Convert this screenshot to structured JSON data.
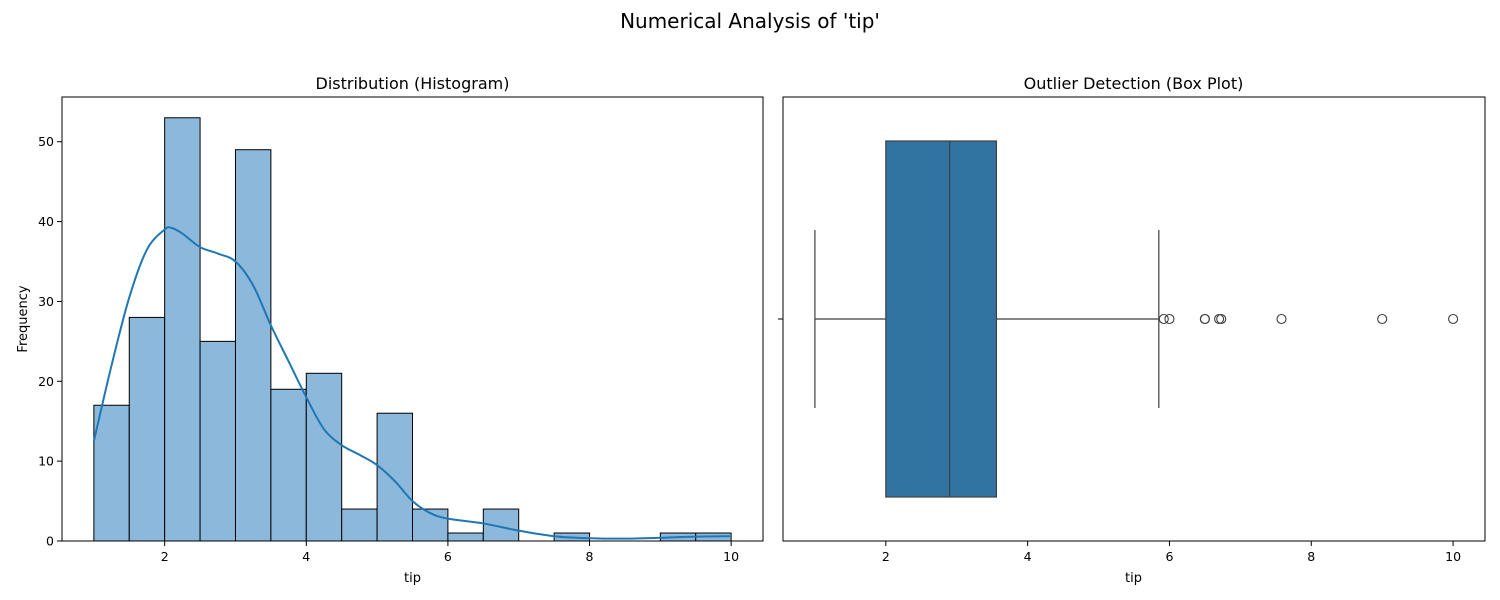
{
  "figure": {
    "suptitle": "Numerical Analysis of 'tip'"
  },
  "chart_data": [
    {
      "type": "bar",
      "subtype": "histogram-with-kde",
      "title": "Distribution (Histogram)",
      "xlabel": "tip",
      "ylabel": "Frequency",
      "xlim": [
        0.55,
        10.45
      ],
      "ylim": [
        0,
        55.6
      ],
      "xticks": [
        2,
        4,
        6,
        8,
        10
      ],
      "yticks": [
        0,
        10,
        20,
        30,
        40,
        50
      ],
      "bins": [
        {
          "x0": 1.0,
          "x1": 1.5,
          "count": 17
        },
        {
          "x0": 1.5,
          "x1": 2.0,
          "count": 28
        },
        {
          "x0": 2.0,
          "x1": 2.5,
          "count": 53
        },
        {
          "x0": 2.5,
          "x1": 3.0,
          "count": 25
        },
        {
          "x0": 3.0,
          "x1": 3.5,
          "count": 49
        },
        {
          "x0": 3.5,
          "x1": 4.0,
          "count": 19
        },
        {
          "x0": 4.0,
          "x1": 4.5,
          "count": 21
        },
        {
          "x0": 4.5,
          "x1": 5.0,
          "count": 4
        },
        {
          "x0": 5.0,
          "x1": 5.5,
          "count": 16
        },
        {
          "x0": 5.5,
          "x1": 6.0,
          "count": 4
        },
        {
          "x0": 6.0,
          "x1": 6.5,
          "count": 1
        },
        {
          "x0": 6.5,
          "x1": 7.0,
          "count": 4
        },
        {
          "x0": 7.0,
          "x1": 7.5,
          "count": 0
        },
        {
          "x0": 7.5,
          "x1": 8.0,
          "count": 1
        },
        {
          "x0": 8.0,
          "x1": 8.5,
          "count": 0
        },
        {
          "x0": 8.5,
          "x1": 9.0,
          "count": 0
        },
        {
          "x0": 9.0,
          "x1": 9.5,
          "count": 1
        },
        {
          "x0": 9.5,
          "x1": 10.0,
          "count": 1
        }
      ],
      "kde": {
        "x": [
          1.0,
          1.25,
          1.5,
          1.75,
          2.0,
          2.1,
          2.25,
          2.5,
          2.75,
          3.0,
          3.25,
          3.5,
          3.75,
          4.0,
          4.25,
          4.5,
          4.75,
          5.0,
          5.25,
          5.5,
          5.75,
          6.0,
          6.5,
          7.0,
          7.5,
          8.0,
          8.5,
          9.0,
          9.5,
          10.0
        ],
        "y": [
          12.5,
          22,
          30.5,
          36.5,
          39,
          39.2,
          38.5,
          36.8,
          36,
          35,
          32,
          27,
          22.5,
          18,
          14,
          12,
          10.8,
          9.5,
          7.5,
          5,
          3.5,
          2.8,
          2.2,
          1.3,
          0.6,
          0.35,
          0.3,
          0.4,
          0.55,
          0.6
        ]
      },
      "colors": {
        "bar_fill": "#8cb9db",
        "bar_edge": "#000000",
        "kde_line": "#1f77b4"
      }
    },
    {
      "type": "box",
      "title": "Outlier Detection (Box Plot)",
      "xlabel": "tip",
      "xlim": [
        0.55,
        10.45
      ],
      "xticks": [
        2,
        4,
        6,
        8,
        10
      ],
      "stats": {
        "whisker_low": 1.0,
        "q1": 2.0,
        "median": 2.9,
        "q3": 3.56,
        "whisker_high": 5.85
      },
      "outliers": [
        5.92,
        6.0,
        6.5,
        6.5,
        6.7,
        6.73,
        7.58,
        9.0,
        10.0
      ],
      "colors": {
        "box_fill": "#3274a1",
        "line": "#3f3f3f"
      }
    }
  ]
}
